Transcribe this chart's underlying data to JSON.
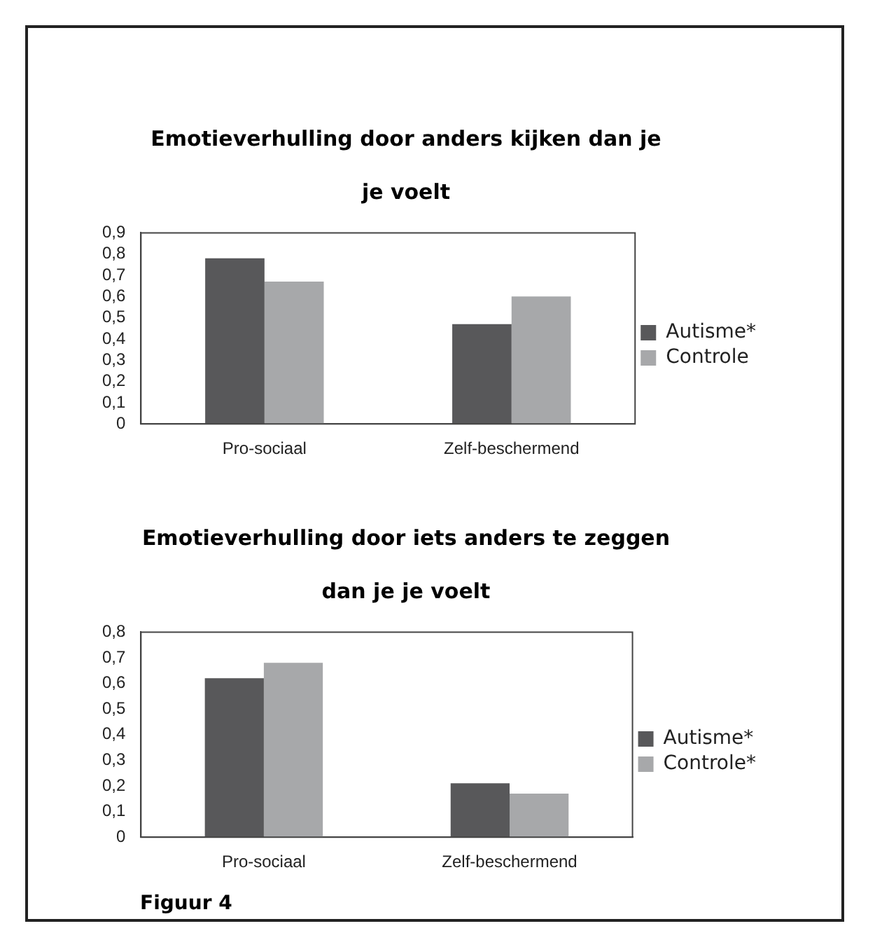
{
  "chart_data": [
    {
      "type": "bar",
      "title": "Emotieverhulling door anders kijken dan je je voelt",
      "categories": [
        "Pro-sociaal",
        "Zelf-beschermend"
      ],
      "series": [
        {
          "name": "Autisme*",
          "color": "#58585a",
          "values": [
            0.78,
            0.47
          ]
        },
        {
          "name": "Controle",
          "color": "#a7a8aa",
          "values": [
            0.67,
            0.6
          ]
        }
      ],
      "ylim": [
        0,
        0.9
      ],
      "yticks": [
        {
          "value": 0,
          "label": "0"
        },
        {
          "value": 0.1,
          "label": "0,1"
        },
        {
          "value": 0.2,
          "label": "0,2"
        },
        {
          "value": 0.3,
          "label": "0,3"
        },
        {
          "value": 0.4,
          "label": "0,4"
        },
        {
          "value": 0.5,
          "label": "0,5"
        },
        {
          "value": 0.6,
          "label": "0,6"
        },
        {
          "value": 0.7,
          "label": "0,7"
        },
        {
          "value": 0.8,
          "label": "0,8"
        },
        {
          "value": 0.9,
          "label": "0,9"
        }
      ],
      "grid": false,
      "legend": "right"
    },
    {
      "type": "bar",
      "title": "Emotieverhulling door iets anders te zeggen dan je je voelt",
      "categories": [
        "Pro-sociaal",
        "Zelf-beschermend"
      ],
      "series": [
        {
          "name": "Autisme*",
          "color": "#58585a",
          "values": [
            0.62,
            0.21
          ]
        },
        {
          "name": "Controle*",
          "color": "#a7a8aa",
          "values": [
            0.68,
            0.17
          ]
        }
      ],
      "ylim": [
        0,
        0.8
      ],
      "yticks": [
        {
          "value": 0,
          "label": "0"
        },
        {
          "value": 0.1,
          "label": "0,1"
        },
        {
          "value": 0.2,
          "label": "0,2"
        },
        {
          "value": 0.3,
          "label": "0,3"
        },
        {
          "value": 0.4,
          "label": "0,4"
        },
        {
          "value": 0.5,
          "label": "0,5"
        },
        {
          "value": 0.6,
          "label": "0,6"
        },
        {
          "value": 0.7,
          "label": "0,7"
        },
        {
          "value": 0.8,
          "label": "0,8"
        }
      ],
      "grid": false,
      "legend": "right",
      "annotations": [
        "Figuur 4"
      ]
    }
  ]
}
